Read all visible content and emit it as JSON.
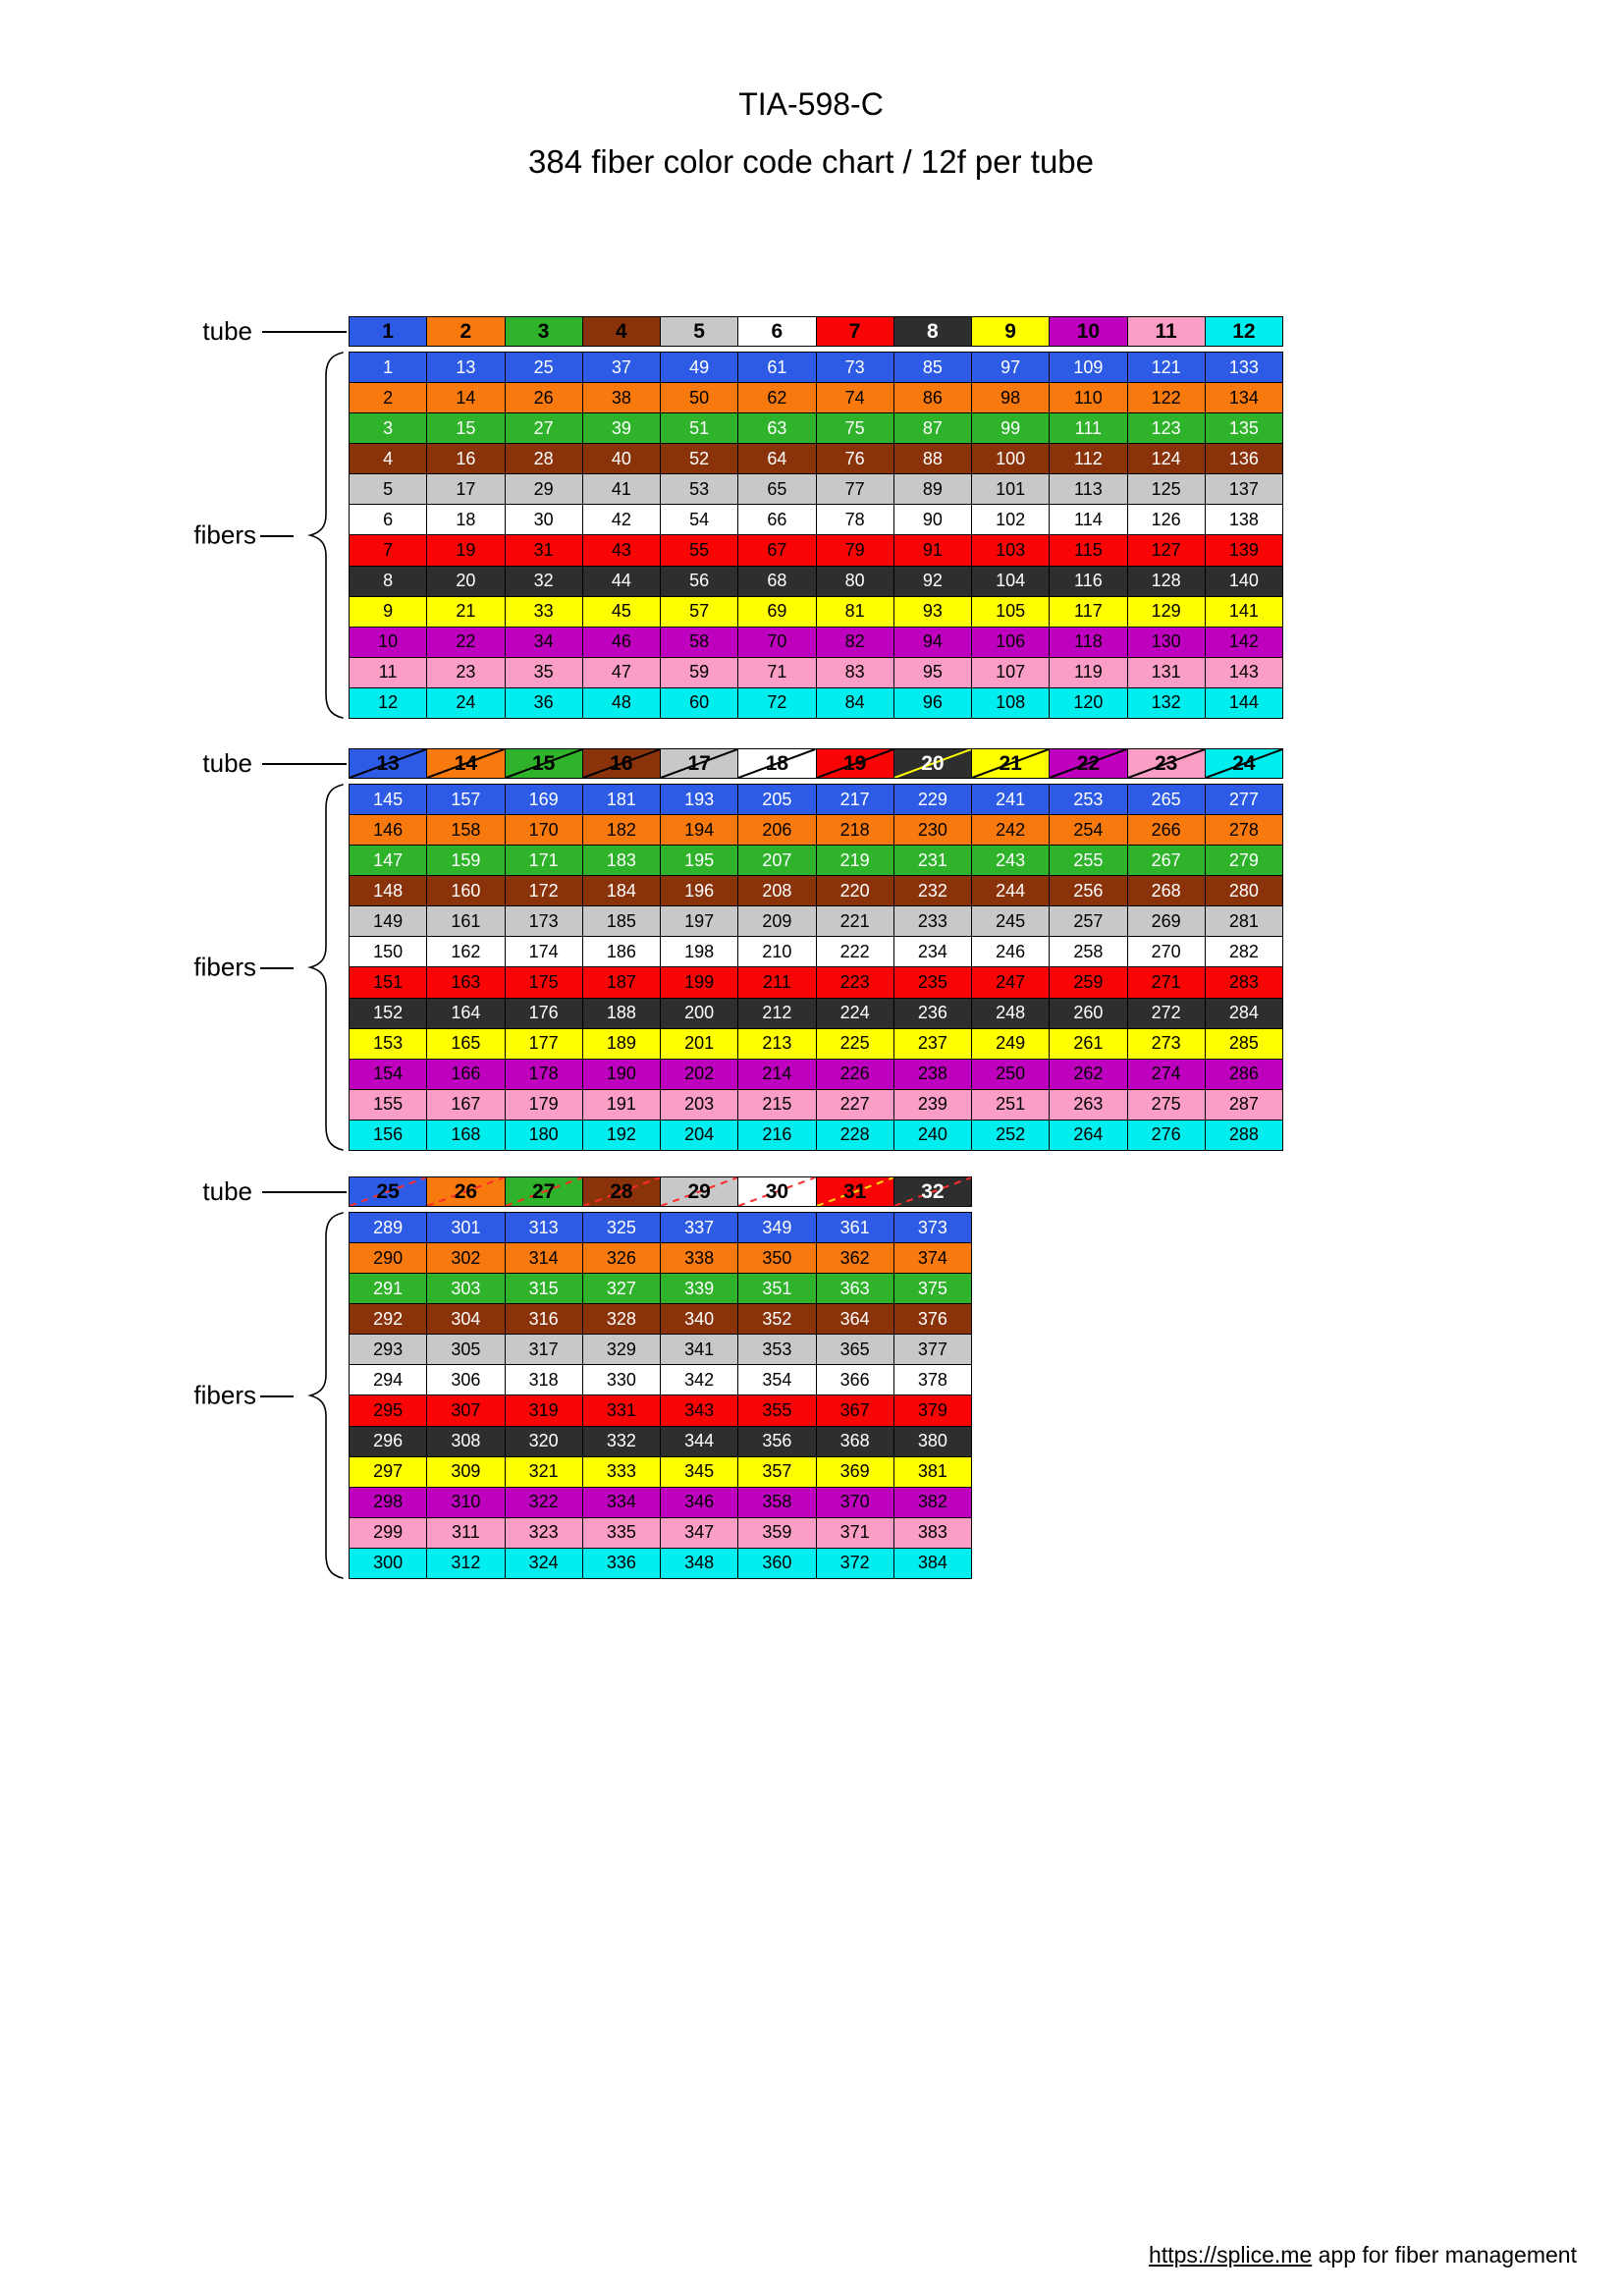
{
  "page": {
    "title": "TIA-598-C",
    "subtitle": "384 fiber color code chart / 12f per tube"
  },
  "labels": {
    "tube": "tube",
    "fibers": "fibers"
  },
  "footer": {
    "link_text": "https://splice.me",
    "suffix": " app for fiber management"
  },
  "palette": {
    "blue": {
      "bg": "#2D5BE5",
      "fg": "#FFFFFF"
    },
    "orange": {
      "bg": "#F87A0E",
      "fg": "#000000"
    },
    "green": {
      "bg": "#2EB32A",
      "fg": "#FFFFFF"
    },
    "brown": {
      "bg": "#8A330B",
      "fg": "#FFFFFF"
    },
    "slate": {
      "bg": "#C8C8C8",
      "fg": "#000000"
    },
    "white": {
      "bg": "#FFFFFF",
      "fg": "#000000"
    },
    "red": {
      "bg": "#FA0505",
      "fg": "#000000"
    },
    "black": {
      "bg": "#2E2E2E",
      "fg": "#FFFFFF"
    },
    "yellow": {
      "bg": "#FFFF00",
      "fg": "#000000"
    },
    "violet": {
      "bg": "#BE00BE",
      "fg": "#000000"
    },
    "rose": {
      "bg": "#FB9EC6",
      "fg": "#000000"
    },
    "aqua": {
      "bg": "#00EEEE",
      "fg": "#000000"
    }
  },
  "tables": [
    {
      "tracer_dash": false,
      "headers": [
        {
          "tube": 1,
          "color": "blue",
          "fg": "#000000"
        },
        {
          "tube": 2,
          "color": "orange",
          "fg": "#000000"
        },
        {
          "tube": 3,
          "color": "green",
          "fg": "#000000"
        },
        {
          "tube": 4,
          "color": "brown",
          "fg": "#000000"
        },
        {
          "tube": 5,
          "color": "slate",
          "fg": "#000000"
        },
        {
          "tube": 6,
          "color": "white",
          "fg": "#000000"
        },
        {
          "tube": 7,
          "color": "red",
          "fg": "#000000"
        },
        {
          "tube": 8,
          "color": "black",
          "fg": "#FFFFFF"
        },
        {
          "tube": 9,
          "color": "yellow",
          "fg": "#000000"
        },
        {
          "tube": 10,
          "color": "violet",
          "fg": "#000000"
        },
        {
          "tube": 11,
          "color": "rose",
          "fg": "#000000"
        },
        {
          "tube": 12,
          "color": "aqua",
          "fg": "#000000"
        }
      ],
      "rows": [
        {
          "color": "blue",
          "values": [
            1,
            13,
            25,
            37,
            49,
            61,
            73,
            85,
            97,
            109,
            121,
            133
          ]
        },
        {
          "color": "orange",
          "values": [
            2,
            14,
            26,
            38,
            50,
            62,
            74,
            86,
            98,
            110,
            122,
            134
          ]
        },
        {
          "color": "green",
          "values": [
            3,
            15,
            27,
            39,
            51,
            63,
            75,
            87,
            99,
            111,
            123,
            135
          ]
        },
        {
          "color": "brown",
          "values": [
            4,
            16,
            28,
            40,
            52,
            64,
            76,
            88,
            100,
            112,
            124,
            136
          ]
        },
        {
          "color": "slate",
          "values": [
            5,
            17,
            29,
            41,
            53,
            65,
            77,
            89,
            101,
            113,
            125,
            137
          ]
        },
        {
          "color": "white",
          "values": [
            6,
            18,
            30,
            42,
            54,
            66,
            78,
            90,
            102,
            114,
            126,
            138
          ]
        },
        {
          "color": "red",
          "values": [
            7,
            19,
            31,
            43,
            55,
            67,
            79,
            91,
            103,
            115,
            127,
            139
          ]
        },
        {
          "color": "black",
          "values": [
            8,
            20,
            32,
            44,
            56,
            68,
            80,
            92,
            104,
            116,
            128,
            140
          ]
        },
        {
          "color": "yellow",
          "values": [
            9,
            21,
            33,
            45,
            57,
            69,
            81,
            93,
            105,
            117,
            129,
            141
          ]
        },
        {
          "color": "violet",
          "values": [
            10,
            22,
            34,
            46,
            58,
            70,
            82,
            94,
            106,
            118,
            130,
            142
          ]
        },
        {
          "color": "rose",
          "values": [
            11,
            23,
            35,
            47,
            59,
            71,
            83,
            95,
            107,
            119,
            131,
            143
          ]
        },
        {
          "color": "aqua",
          "values": [
            12,
            24,
            36,
            48,
            60,
            72,
            84,
            96,
            108,
            120,
            132,
            144
          ]
        }
      ]
    },
    {
      "tracer_dash": false,
      "headers": [
        {
          "tube": 13,
          "color": "blue",
          "fg": "#000000",
          "tracer": "#000000"
        },
        {
          "tube": 14,
          "color": "orange",
          "fg": "#000000",
          "tracer": "#000000"
        },
        {
          "tube": 15,
          "color": "green",
          "fg": "#000000",
          "tracer": "#000000"
        },
        {
          "tube": 16,
          "color": "brown",
          "fg": "#000000",
          "tracer": "#000000"
        },
        {
          "tube": 17,
          "color": "slate",
          "fg": "#000000",
          "tracer": "#000000"
        },
        {
          "tube": 18,
          "color": "white",
          "fg": "#000000",
          "tracer": "#000000"
        },
        {
          "tube": 19,
          "color": "red",
          "fg": "#000000",
          "tracer": "#000000"
        },
        {
          "tube": 20,
          "color": "black",
          "fg": "#FFFFFF",
          "tracer": "#FFFF00"
        },
        {
          "tube": 21,
          "color": "yellow",
          "fg": "#000000",
          "tracer": "#000000"
        },
        {
          "tube": 22,
          "color": "violet",
          "fg": "#000000",
          "tracer": "#000000"
        },
        {
          "tube": 23,
          "color": "rose",
          "fg": "#000000",
          "tracer": "#000000"
        },
        {
          "tube": 24,
          "color": "aqua",
          "fg": "#000000",
          "tracer": "#000000"
        }
      ],
      "rows": [
        {
          "color": "blue",
          "values": [
            145,
            157,
            169,
            181,
            193,
            205,
            217,
            229,
            241,
            253,
            265,
            277
          ]
        },
        {
          "color": "orange",
          "values": [
            146,
            158,
            170,
            182,
            194,
            206,
            218,
            230,
            242,
            254,
            266,
            278
          ]
        },
        {
          "color": "green",
          "values": [
            147,
            159,
            171,
            183,
            195,
            207,
            219,
            231,
            243,
            255,
            267,
            279
          ]
        },
        {
          "color": "brown",
          "values": [
            148,
            160,
            172,
            184,
            196,
            208,
            220,
            232,
            244,
            256,
            268,
            280
          ]
        },
        {
          "color": "slate",
          "values": [
            149,
            161,
            173,
            185,
            197,
            209,
            221,
            233,
            245,
            257,
            269,
            281
          ]
        },
        {
          "color": "white",
          "values": [
            150,
            162,
            174,
            186,
            198,
            210,
            222,
            234,
            246,
            258,
            270,
            282
          ]
        },
        {
          "color": "red",
          "values": [
            151,
            163,
            175,
            187,
            199,
            211,
            223,
            235,
            247,
            259,
            271,
            283
          ]
        },
        {
          "color": "black",
          "values": [
            152,
            164,
            176,
            188,
            200,
            212,
            224,
            236,
            248,
            260,
            272,
            284
          ]
        },
        {
          "color": "yellow",
          "values": [
            153,
            165,
            177,
            189,
            201,
            213,
            225,
            237,
            249,
            261,
            273,
            285
          ]
        },
        {
          "color": "violet",
          "values": [
            154,
            166,
            178,
            190,
            202,
            214,
            226,
            238,
            250,
            262,
            274,
            286
          ]
        },
        {
          "color": "rose",
          "values": [
            155,
            167,
            179,
            191,
            203,
            215,
            227,
            239,
            251,
            263,
            275,
            287
          ]
        },
        {
          "color": "aqua",
          "values": [
            156,
            168,
            180,
            192,
            204,
            216,
            228,
            240,
            252,
            264,
            276,
            288
          ]
        }
      ]
    },
    {
      "tracer_dash": true,
      "headers": [
        {
          "tube": 25,
          "color": "blue",
          "fg": "#000000",
          "tracer": "#FF2A2A"
        },
        {
          "tube": 26,
          "color": "orange",
          "fg": "#000000",
          "tracer": "#FF2A2A"
        },
        {
          "tube": 27,
          "color": "green",
          "fg": "#000000",
          "tracer": "#FF2A2A"
        },
        {
          "tube": 28,
          "color": "brown",
          "fg": "#000000",
          "tracer": "#FF2A2A"
        },
        {
          "tube": 29,
          "color": "slate",
          "fg": "#000000",
          "tracer": "#FF2A2A"
        },
        {
          "tube": 30,
          "color": "white",
          "fg": "#000000",
          "tracer": "#FF2A2A"
        },
        {
          "tube": 31,
          "color": "red",
          "fg": "#000000",
          "tracer": "#FFE000"
        },
        {
          "tube": 32,
          "color": "black",
          "fg": "#FFFFFF",
          "tracer": "#FF2A2A"
        }
      ],
      "rows": [
        {
          "color": "blue",
          "values": [
            289,
            301,
            313,
            325,
            337,
            349,
            361,
            373
          ]
        },
        {
          "color": "orange",
          "values": [
            290,
            302,
            314,
            326,
            338,
            350,
            362,
            374
          ]
        },
        {
          "color": "green",
          "values": [
            291,
            303,
            315,
            327,
            339,
            351,
            363,
            375
          ]
        },
        {
          "color": "brown",
          "values": [
            292,
            304,
            316,
            328,
            340,
            352,
            364,
            376
          ]
        },
        {
          "color": "slate",
          "values": [
            293,
            305,
            317,
            329,
            341,
            353,
            365,
            377
          ]
        },
        {
          "color": "white",
          "values": [
            294,
            306,
            318,
            330,
            342,
            354,
            366,
            378
          ]
        },
        {
          "color": "red",
          "values": [
            295,
            307,
            319,
            331,
            343,
            355,
            367,
            379
          ]
        },
        {
          "color": "black",
          "values": [
            296,
            308,
            320,
            332,
            344,
            356,
            368,
            380
          ]
        },
        {
          "color": "yellow",
          "values": [
            297,
            309,
            321,
            333,
            345,
            357,
            369,
            381
          ]
        },
        {
          "color": "violet",
          "values": [
            298,
            310,
            322,
            334,
            346,
            358,
            370,
            382
          ]
        },
        {
          "color": "rose",
          "values": [
            299,
            311,
            323,
            335,
            347,
            359,
            371,
            383
          ]
        },
        {
          "color": "aqua",
          "values": [
            300,
            312,
            324,
            336,
            348,
            360,
            372,
            384
          ]
        }
      ]
    }
  ]
}
